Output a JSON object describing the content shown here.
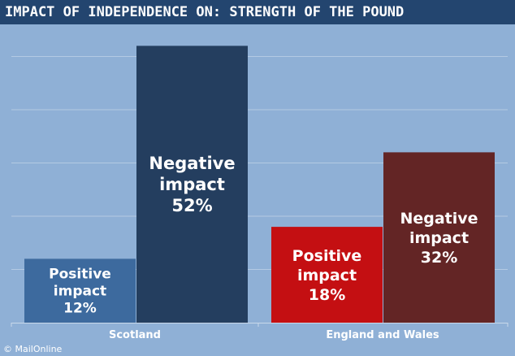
{
  "header": {
    "title": "IMPACT OF INDEPENDENCE ON: STRENGTH OF THE POUND"
  },
  "credit": "© MailOnline",
  "chart_data": {
    "type": "bar",
    "title": "IMPACT OF INDEPENDENCE ON: STRENGTH OF THE POUND",
    "categories": [
      "Scotland",
      "England and Wales"
    ],
    "ylim": [
      0,
      60
    ],
    "grid": true,
    "colors": {
      "background": "#8fb0d6",
      "gridline": "#b4cae3",
      "scotland_positive": "#3d6a9e",
      "scotland_negative": "#243e5f",
      "ew_positive": "#c40f12",
      "ew_negative": "#632525"
    },
    "bars": [
      {
        "category": "Scotland",
        "label_line1": "Positive",
        "label_line2": "impact",
        "value_label": "12%",
        "value": 12,
        "color": "#3d6a9e"
      },
      {
        "category": "Scotland",
        "label_line1": "Negative",
        "label_line2": "impact",
        "value_label": "52%",
        "value": 52,
        "color": "#243e5f"
      },
      {
        "category": "England and Wales",
        "label_line1": "Positive",
        "label_line2": "impact",
        "value_label": "18%",
        "value": 18,
        "color": "#c40f12"
      },
      {
        "category": "England and Wales",
        "label_line1": "Negative",
        "label_line2": "impact",
        "value_label": "32%",
        "value": 32,
        "color": "#632525"
      }
    ]
  }
}
